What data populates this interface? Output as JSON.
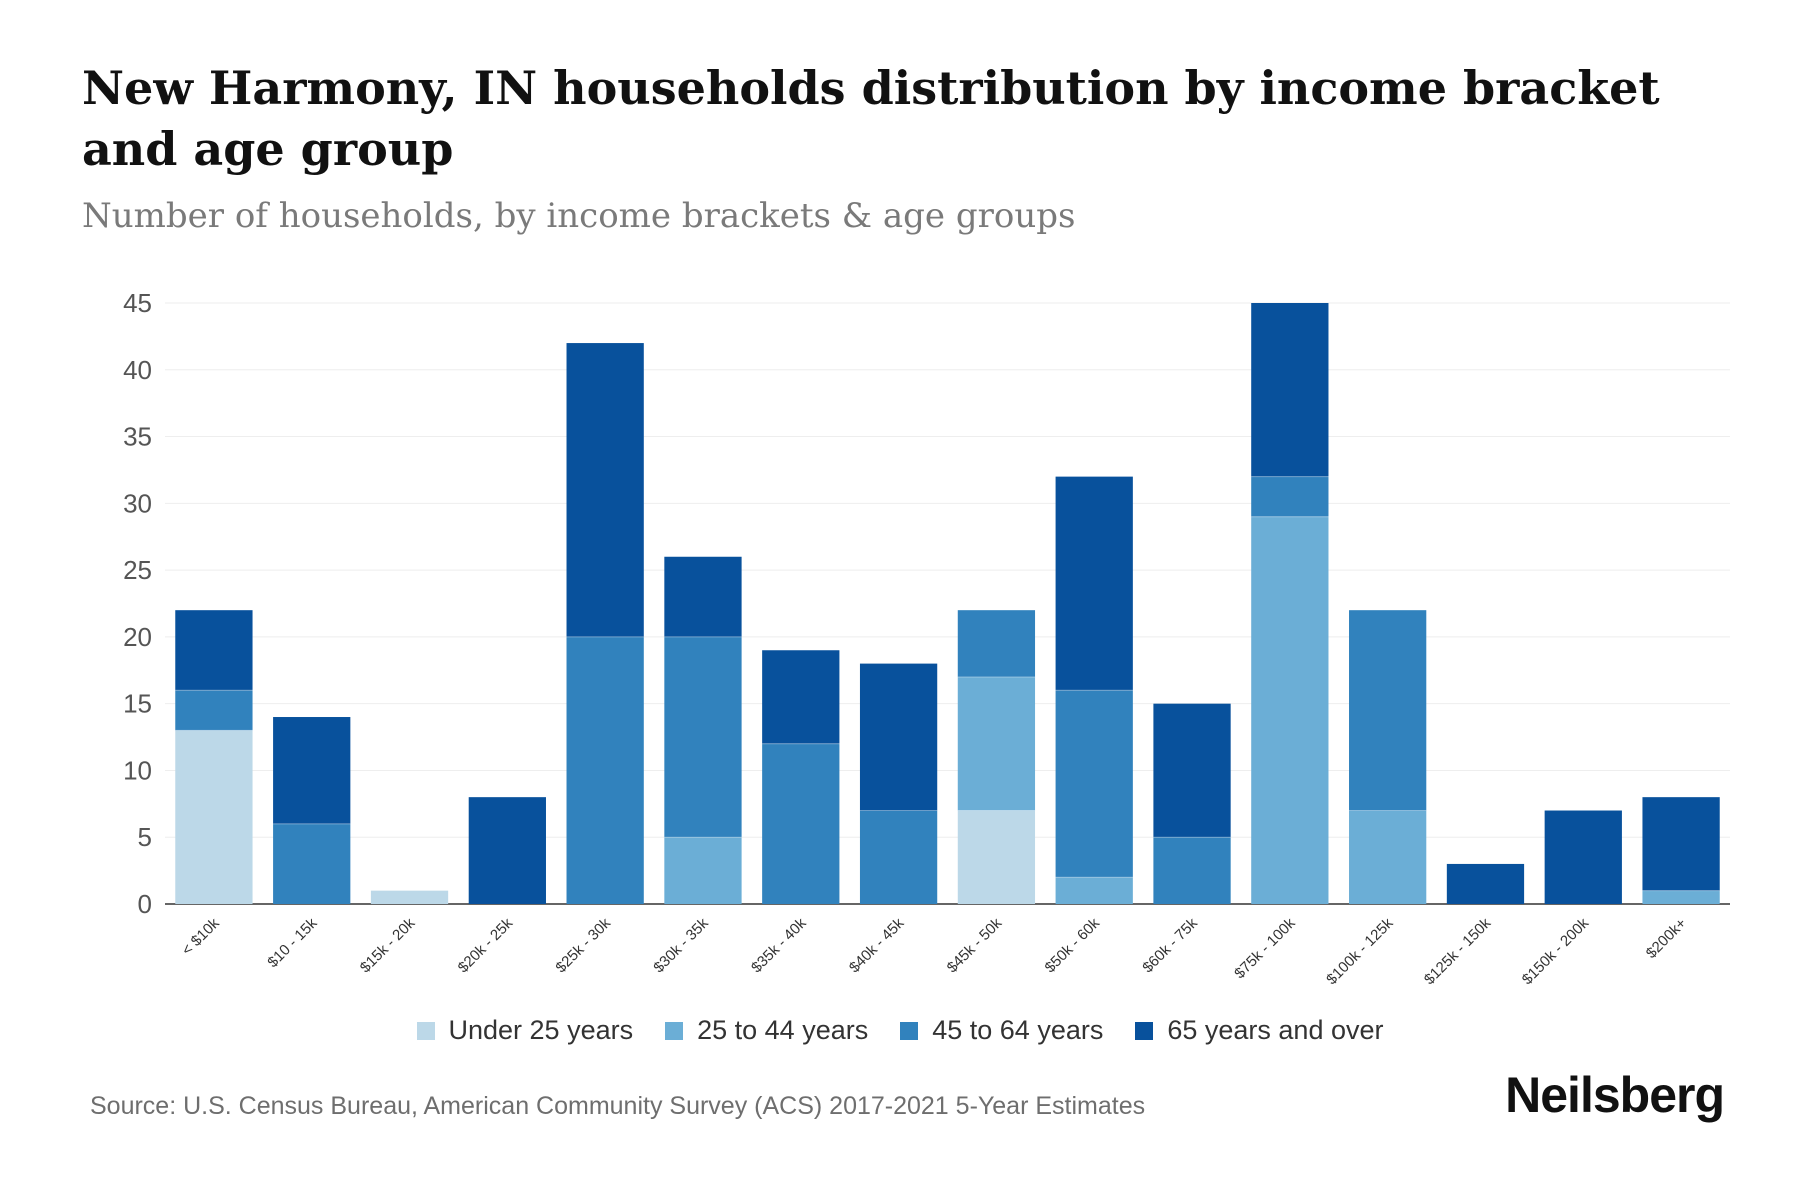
{
  "title": "New Harmony, IN households distribution by income bracket and age group",
  "subtitle": "Number of households, by income brackets & age groups",
  "source": "Source: U.S. Census Bureau, American Community Survey (ACS) 2017-2021 5-Year Estimates",
  "brand": "Neilsberg",
  "chart_data": {
    "type": "bar",
    "stacked": true,
    "categories": [
      "< $10k",
      "$10 - 15k",
      "$15k - 20k",
      "$20k - 25k",
      "$25k - 30k",
      "$30k - 35k",
      "$35k - 40k",
      "$40k - 45k",
      "$45k - 50k",
      "$50k - 60k",
      "$60k - 75k",
      "$75k - 100k",
      "$100k - 125k",
      "$125k - 150k",
      "$150k - 200k",
      "$200k+"
    ],
    "series": [
      {
        "name": "Under 25 years",
        "color": "#bcd8e8",
        "values": [
          13,
          0,
          1,
          0,
          0,
          0,
          0,
          0,
          7,
          0,
          0,
          0,
          0,
          0,
          0,
          0
        ]
      },
      {
        "name": "25 to 44 years",
        "color": "#6baed6",
        "values": [
          0,
          0,
          0,
          0,
          0,
          5,
          0,
          0,
          10,
          2,
          0,
          29,
          7,
          0,
          0,
          1
        ]
      },
      {
        "name": "45 to 64 years",
        "color": "#3182bd",
        "values": [
          3,
          6,
          0,
          0,
          20,
          15,
          12,
          7,
          5,
          14,
          5,
          3,
          15,
          0,
          0,
          0
        ]
      },
      {
        "name": "65 years and over",
        "color": "#08519c",
        "values": [
          6,
          8,
          0,
          8,
          22,
          6,
          7,
          11,
          0,
          16,
          10,
          13,
          0,
          3,
          7,
          7
        ]
      }
    ],
    "yticks": [
      0,
      5,
      10,
      15,
      20,
      25,
      30,
      35,
      40,
      45
    ],
    "ylim": [
      0,
      45
    ],
    "grid": true,
    "legend_position": "bottom"
  }
}
